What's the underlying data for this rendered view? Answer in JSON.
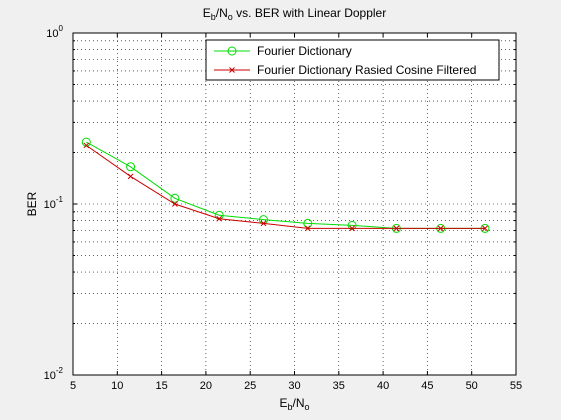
{
  "chart_data": {
    "type": "line",
    "title": {
      "main": "E",
      "sub1": "b",
      "mid": "/N",
      "sub2": "o",
      "rest": " vs. BER with Linear Doppler"
    },
    "xlabel": {
      "main": "E",
      "sub1": "b",
      "mid": "/N",
      "sub2": "o"
    },
    "ylabel": "BER",
    "xlim": [
      5,
      55
    ],
    "ylim": [
      0.01,
      1
    ],
    "yscale": "log",
    "grid": true,
    "legend_position": "top-right",
    "x_ticks": [
      5,
      10,
      15,
      20,
      25,
      30,
      35,
      40,
      45,
      50,
      55
    ],
    "x_tick_labels": [
      "5",
      "10",
      "15",
      "20",
      "25",
      "30",
      "35",
      "40",
      "45",
      "50",
      "55"
    ],
    "y_ticks": [
      0.01,
      0.1,
      1
    ],
    "y_tick_labels": [
      {
        "base": "10",
        "exp": "-2"
      },
      {
        "base": "10",
        "exp": "-1"
      },
      {
        "base": "10",
        "exp": "0"
      }
    ],
    "x": [
      6.5,
      11.5,
      16.5,
      21.5,
      26.5,
      31.5,
      36.5,
      41.5,
      46.5,
      51.5
    ],
    "series": [
      {
        "name": "Fourier Dictionary",
        "color": "#00dd00",
        "marker": "circle",
        "values": [
          0.23,
          0.165,
          0.108,
          0.086,
          0.081,
          0.077,
          0.075,
          0.072,
          0.072,
          0.072
        ]
      },
      {
        "name": "Fourier Dictionary Rasied Cosine Filtered",
        "color": "#cc0000",
        "marker": "x",
        "values": [
          0.22,
          0.145,
          0.1,
          0.082,
          0.077,
          0.072,
          0.072,
          0.072,
          0.072,
          0.072
        ]
      }
    ]
  }
}
